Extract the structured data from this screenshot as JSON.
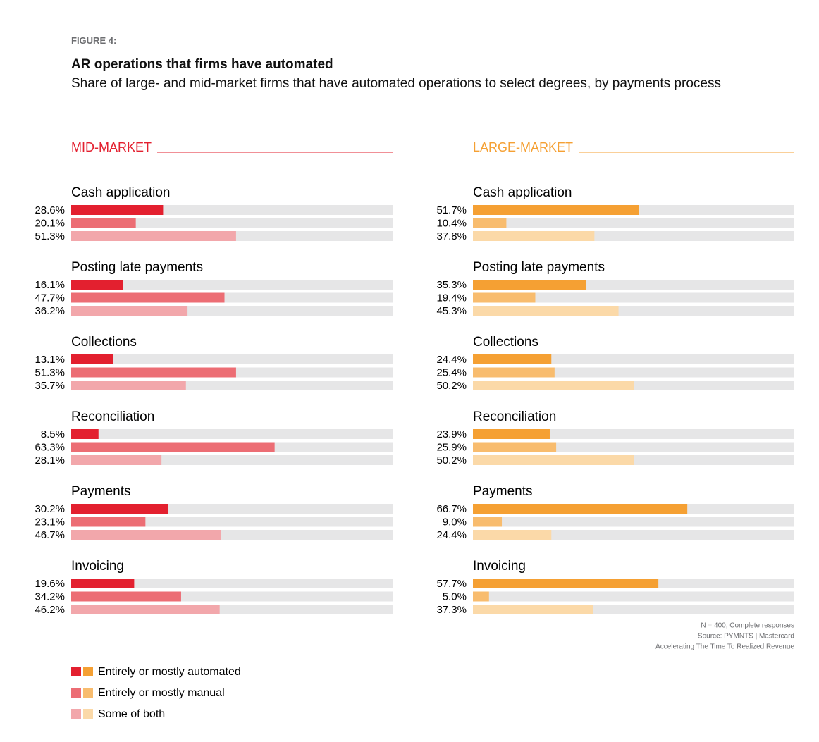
{
  "figure_label": "FIGURE 4:",
  "title": "AR operations that firms have automated",
  "subtitle": "Share of large- and mid-market firms that have automated operations to select degrees, by payments process",
  "notes": [
    "N = 400; Complete responses",
    "Source: PYMNTS  |  Mastercard",
    "Accelerating The Time To Realized Revenue"
  ],
  "chart_data": [
    {
      "type": "bar",
      "orientation": "horizontal",
      "title": "MID-MARKET",
      "title_color": "#e3202f",
      "xlim": [
        0,
        100
      ],
      "categories": [
        "Cash application",
        "Posting late payments",
        "Collections",
        "Reconciliation",
        "Payments",
        "Invoicing"
      ],
      "series": [
        {
          "name": "Entirely or mostly automated",
          "color": "#e3202f",
          "values": [
            28.6,
            16.1,
            13.1,
            8.5,
            30.2,
            19.6
          ],
          "value_labels": [
            "28.6%",
            "16.1%",
            "13.1%",
            "8.5%",
            "30.2%",
            "19.6%"
          ]
        },
        {
          "name": "Entirely or mostly manual",
          "color": "#ec6d74",
          "values": [
            20.1,
            47.7,
            51.3,
            63.3,
            23.1,
            34.2
          ],
          "value_labels": [
            "20.1%",
            "47.7%",
            "51.3%",
            "63.3%",
            "23.1%",
            "34.2%"
          ]
        },
        {
          "name": "Some of both",
          "color": "#f2a7ab",
          "values": [
            51.3,
            36.2,
            35.7,
            28.1,
            46.7,
            46.2
          ],
          "value_labels": [
            "51.3%",
            "36.2%",
            "35.7%",
            "28.1%",
            "46.7%",
            "46.2%"
          ]
        }
      ]
    },
    {
      "type": "bar",
      "orientation": "horizontal",
      "title": "LARGE-MARKET",
      "title_color": "#f5a033",
      "xlim": [
        0,
        100
      ],
      "categories": [
        "Cash application",
        "Posting late payments",
        "Collections",
        "Reconciliation",
        "Payments",
        "Invoicing"
      ],
      "series": [
        {
          "color": "#f5a033",
          "values": [
            51.7,
            35.3,
            24.4,
            23.9,
            66.7,
            57.7
          ],
          "value_labels": [
            "51.7%",
            "35.3%",
            "24.4%",
            "23.9%",
            "66.7%",
            "57.7%"
          ]
        },
        {
          "color": "#f8bc6e",
          "values": [
            10.4,
            19.4,
            25.4,
            25.9,
            9.0,
            5.0
          ],
          "value_labels": [
            "10.4%",
            "19.4%",
            "25.4%",
            "25.9%",
            "9.0%",
            "5.0%"
          ]
        },
        {
          "color": "#fbd9a8",
          "values": [
            37.8,
            45.3,
            50.2,
            50.2,
            24.4,
            37.3
          ],
          "value_labels": [
            "37.8%",
            "45.3%",
            "50.2%",
            "50.2%",
            "24.4%",
            "37.3%"
          ]
        }
      ]
    }
  ]
}
